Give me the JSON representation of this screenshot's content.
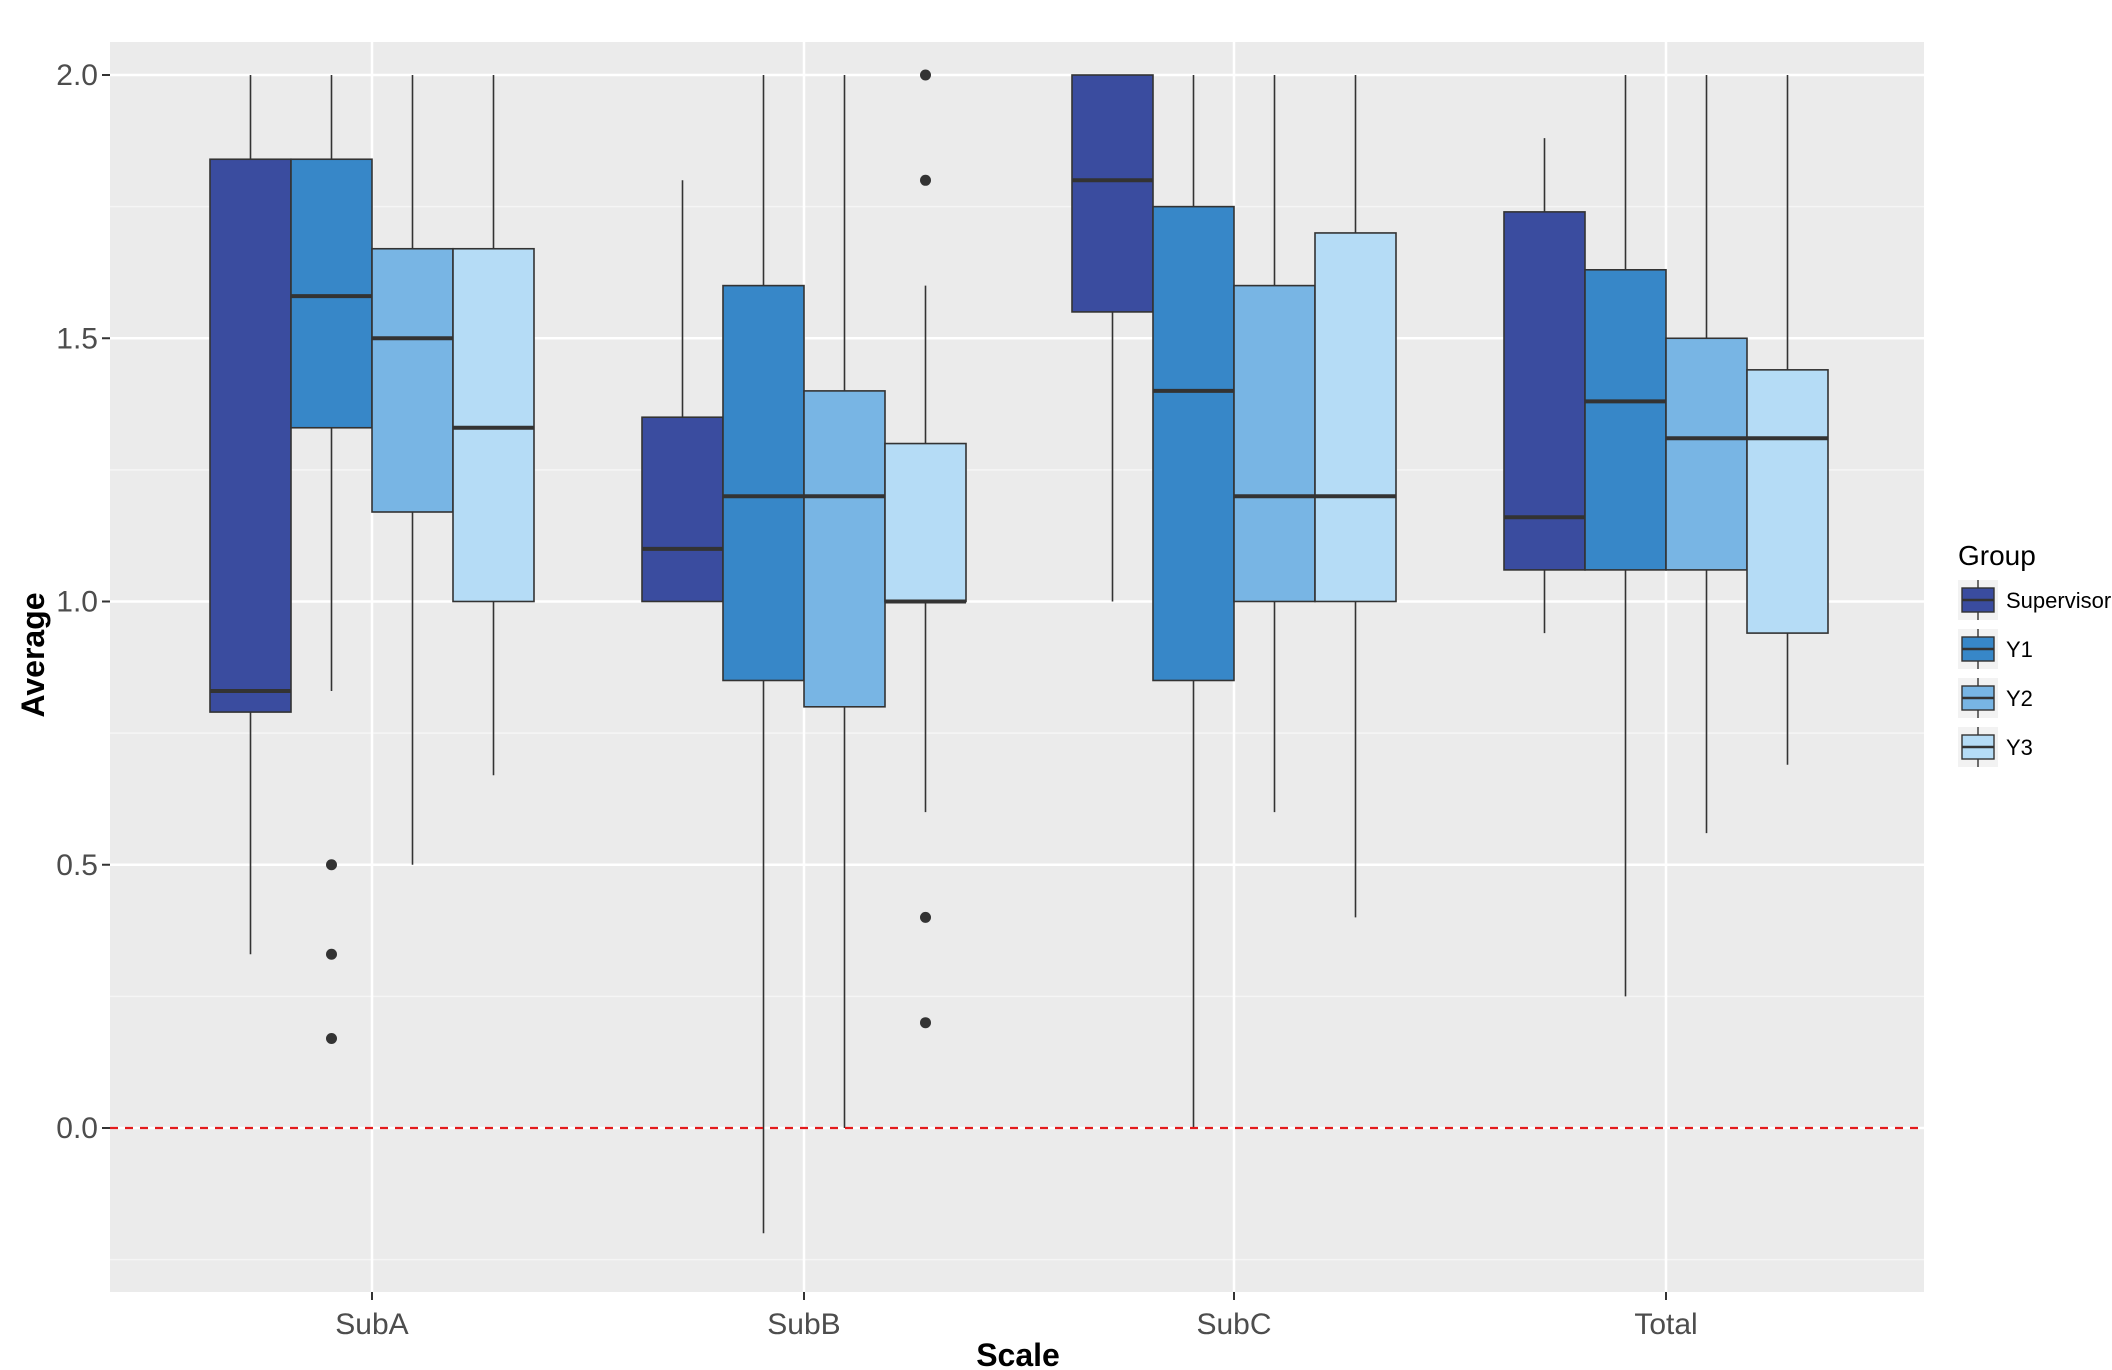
{
  "chart_data": {
    "type": "boxplot",
    "xlabel": "Scale",
    "ylabel": "Average",
    "categories": [
      "SubA",
      "SubB",
      "SubC",
      "Total"
    ],
    "ylim": [
      -0.3,
      2.05
    ],
    "yticks": [
      0.0,
      0.5,
      1.0,
      1.5,
      2.0
    ],
    "ytick_labels": [
      "0.0",
      "0.5",
      "1.0",
      "1.5",
      "2.0"
    ],
    "grid": true,
    "legend": {
      "title": "Group",
      "position": "right"
    },
    "reference_line": {
      "y": 0.0,
      "style": "dashed",
      "color": "#e31a1c"
    },
    "series": [
      {
        "name": "Supervisor",
        "color": "#3a4c9f",
        "boxes": [
          {
            "category": "SubA",
            "min": 0.33,
            "q1": 0.79,
            "median": 0.83,
            "q3": 1.84,
            "max": 2.0,
            "outliers": []
          },
          {
            "category": "SubB",
            "min": 1.0,
            "q1": 1.0,
            "median": 1.1,
            "q3": 1.35,
            "max": 1.8,
            "outliers": []
          },
          {
            "category": "SubC",
            "min": 1.0,
            "q1": 1.55,
            "median": 1.8,
            "q3": 2.0,
            "max": 2.0,
            "outliers": []
          },
          {
            "category": "Total",
            "min": 0.94,
            "q1": 1.06,
            "median": 1.16,
            "q3": 1.74,
            "max": 1.88,
            "outliers": []
          }
        ]
      },
      {
        "name": "Y1",
        "color": "#3787c8",
        "boxes": [
          {
            "category": "SubA",
            "min": 0.83,
            "q1": 1.33,
            "median": 1.58,
            "q3": 1.84,
            "max": 2.0,
            "outliers": [
              0.5,
              0.33,
              0.17
            ]
          },
          {
            "category": "SubB",
            "min": -0.2,
            "q1": 0.85,
            "median": 1.2,
            "q3": 1.6,
            "max": 2.0,
            "outliers": []
          },
          {
            "category": "SubC",
            "min": 0.0,
            "q1": 0.85,
            "median": 1.4,
            "q3": 1.75,
            "max": 2.0,
            "outliers": []
          },
          {
            "category": "Total",
            "min": 0.25,
            "q1": 1.06,
            "median": 1.38,
            "q3": 1.63,
            "max": 2.0,
            "outliers": []
          }
        ]
      },
      {
        "name": "Y2",
        "color": "#78b5e4",
        "boxes": [
          {
            "category": "SubA",
            "min": 0.5,
            "q1": 1.17,
            "median": 1.5,
            "q3": 1.67,
            "max": 2.0,
            "outliers": []
          },
          {
            "category": "SubB",
            "min": 0.0,
            "q1": 0.8,
            "median": 1.2,
            "q3": 1.4,
            "max": 2.0,
            "outliers": []
          },
          {
            "category": "SubC",
            "min": 0.6,
            "q1": 1.0,
            "median": 1.2,
            "q3": 1.6,
            "max": 2.0,
            "outliers": []
          },
          {
            "category": "Total",
            "min": 0.56,
            "q1": 1.06,
            "median": 1.31,
            "q3": 1.5,
            "max": 2.0,
            "outliers": []
          }
        ]
      },
      {
        "name": "Y3",
        "color": "#b5dcf6",
        "boxes": [
          {
            "category": "SubA",
            "min": 0.67,
            "q1": 1.0,
            "median": 1.33,
            "q3": 1.67,
            "max": 2.0,
            "outliers": []
          },
          {
            "category": "SubB",
            "min": 0.6,
            "q1": 1.0,
            "median": 1.0,
            "q3": 1.3,
            "max": 1.6,
            "outliers": [
              2.0,
              1.8,
              0.4,
              0.2
            ]
          },
          {
            "category": "SubC",
            "min": 0.4,
            "q1": 1.0,
            "median": 1.2,
            "q3": 1.7,
            "max": 2.0,
            "outliers": []
          },
          {
            "category": "Total",
            "min": 0.69,
            "q1": 0.94,
            "median": 1.31,
            "q3": 1.44,
            "max": 2.0,
            "outliers": []
          }
        ]
      }
    ]
  },
  "legend_labels": [
    "Supervisor",
    "Y1",
    "Y2",
    "Y3"
  ]
}
